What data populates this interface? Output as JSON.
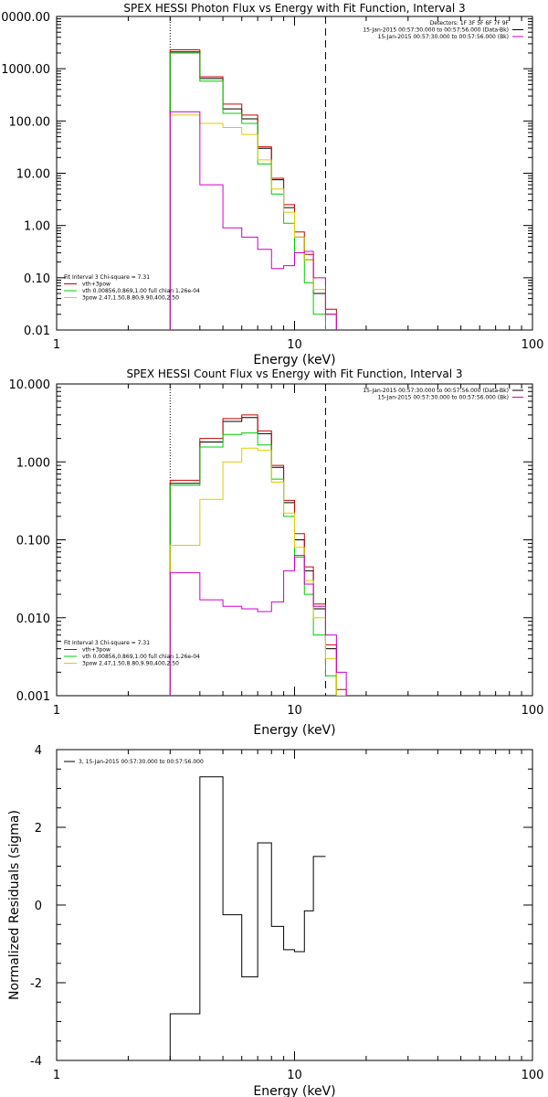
{
  "chart_data": [
    {
      "type": "line",
      "step": true,
      "title": "SPEX HESSI Photon Flux vs Energy with Fit Function, Interval 3",
      "xlabel": "Energy (keV)",
      "ylabel": "",
      "xscale": "log",
      "yscale": "log",
      "xlim": [
        1,
        100
      ],
      "ylim": [
        0.01,
        10000
      ],
      "x_ticks": [
        "1",
        "10",
        "100"
      ],
      "y_ticks": [
        "0.01",
        "0.10",
        "1.00",
        "10.00",
        "100.00",
        "1000.00",
        "0000.00"
      ],
      "vlines": [
        {
          "x": 3,
          "style": "dotted"
        },
        {
          "x": 13.5,
          "style": "dashed"
        }
      ],
      "legend_right": {
        "position": "top-right",
        "header": "Detectors: 1F 3F 5F 6F 7F 9F",
        "entries": [
          {
            "label": "15-Jan-2015 00:57:30.000 to 00:57:56.000 (Data-Bk)",
            "color": "#000000"
          },
          {
            "label": "15-Jan-2015 00:57:30.000 to 00:57:56.000 (Bk)",
            "color": "#cc00cc"
          }
        ]
      },
      "legend_left": {
        "position": "bottom-left",
        "header": "Fit Interval 3   Chi-square = 7.31",
        "entries": [
          {
            "label": "vth+3pow",
            "color": "#cc0000"
          },
          {
            "label": "vth 0.00856,0.869,1.00   full chian 1.26e-04",
            "color": "#00cc00"
          },
          {
            "label": "3pow 2.47,1.50,8.80,9.90,400,2.50",
            "color": "#ddcc00"
          }
        ]
      },
      "edges": [
        3,
        4,
        5,
        6,
        7,
        8,
        9,
        10,
        11,
        12,
        13.5,
        15
      ],
      "series": [
        {
          "role": "data",
          "color": "#000000",
          "values": [
            2100,
            650,
            170,
            110,
            30,
            7.5,
            2.2,
            0.6,
            0.22,
            0.05,
            0.02
          ]
        },
        {
          "role": "fit-total",
          "color": "#cc0000",
          "values": [
            2300,
            700,
            210,
            130,
            32,
            8,
            2.5,
            0.75,
            0.28,
            0.06,
            0.025
          ]
        },
        {
          "role": "thermal",
          "color": "#00cc00",
          "values": [
            2000,
            580,
            140,
            90,
            15,
            4,
            1.1,
            0.3,
            0.08,
            0.02,
            0.008
          ]
        },
        {
          "role": "power-law",
          "color": "#ddcc00",
          "values": [
            130,
            90,
            75,
            55,
            18,
            5,
            1.8,
            0.6,
            0.22,
            0.06,
            0.02
          ]
        },
        {
          "role": "background",
          "color": "#cc00cc",
          "values": [
            150,
            6,
            0.9,
            0.6,
            0.35,
            0.15,
            0.17,
            0.3,
            0.32,
            0.1,
            0.02
          ]
        }
      ]
    },
    {
      "type": "line",
      "step": true,
      "title": "SPEX HESSI Count Flux vs Energy with Fit Function, Interval 3",
      "xlabel": "Energy (keV)",
      "ylabel": "",
      "xscale": "log",
      "yscale": "log",
      "xlim": [
        1,
        100
      ],
      "ylim": [
        0.001,
        10
      ],
      "x_ticks": [
        "1",
        "10",
        "100"
      ],
      "y_ticks": [
        "0.001",
        "0.010",
        "0.100",
        "1.000",
        "10.000"
      ],
      "vlines": [
        {
          "x": 3,
          "style": "dotted"
        },
        {
          "x": 13.5,
          "style": "dashed"
        }
      ],
      "legend_right": {
        "position": "top-right",
        "header": "",
        "entries": [
          {
            "label": "15-Jan-2015 00:57:30.000 to 00:57:56.000 (Data-Bk)",
            "color": "#000000"
          },
          {
            "label": "15-Jan-2015 00:57:30.000 to 00:57:56.000 (Bk)",
            "color": "#cc00cc"
          }
        ]
      },
      "legend_left": {
        "position": "bottom-left",
        "header": "Fit Interval 3   Chi-square = 7.31",
        "entries": [
          {
            "label": "vth+3pow",
            "color": "#cc0000"
          },
          {
            "label": "vth 0.00856,0.869,1.00   full chian 1.26e-04",
            "color": "#00cc00"
          },
          {
            "label": "3pow 2.47,1.50,8.80,9.90,400,2.50",
            "color": "#ddcc00"
          }
        ]
      },
      "edges": [
        3,
        4,
        5,
        6,
        7,
        8,
        9,
        10,
        11,
        12,
        13.5,
        15,
        16.5
      ],
      "series": [
        {
          "role": "data",
          "color": "#000000",
          "values": [
            0.53,
            1.8,
            3.3,
            3.7,
            2.3,
            0.85,
            0.3,
            0.1,
            0.04,
            0.013,
            0.004,
            0.001
          ]
        },
        {
          "role": "fit-total",
          "color": "#cc0000",
          "values": [
            0.58,
            2.0,
            3.6,
            4.0,
            2.5,
            0.9,
            0.32,
            0.12,
            0.045,
            0.015,
            0.0045,
            0.0012
          ]
        },
        {
          "role": "thermal",
          "color": "#00cc00",
          "values": [
            0.5,
            1.55,
            2.25,
            2.35,
            1.65,
            0.6,
            0.2,
            0.06,
            0.02,
            0.006,
            0.0018,
            0.0005
          ]
        },
        {
          "role": "power-law",
          "color": "#ddcc00",
          "values": [
            0.085,
            0.33,
            1.0,
            1.5,
            1.4,
            0.55,
            0.22,
            0.08,
            0.03,
            0.01,
            0.003,
            0.001
          ]
        },
        {
          "role": "background",
          "color": "#cc00cc",
          "values": [
            0.038,
            0.017,
            0.014,
            0.013,
            0.012,
            0.016,
            0.04,
            0.063,
            0.027,
            0.014,
            0.006,
            0.002
          ]
        }
      ]
    },
    {
      "type": "line",
      "step": true,
      "title": "",
      "xlabel": "Energy (keV)",
      "ylabel": "Normalized Residuals (sigma)",
      "xscale": "log",
      "yscale": "linear",
      "xlim": [
        1,
        100
      ],
      "ylim": [
        -4,
        4
      ],
      "x_ticks": [
        "1",
        "10",
        "100"
      ],
      "y_ticks": [
        "-4",
        "-2",
        "0",
        "2",
        "4"
      ],
      "legend": {
        "position": "top-left",
        "entries": [
          {
            "label": "3, 15-Jan-2015 00:57:30.000 to 00:57:56.000",
            "color": "#000000"
          }
        ]
      },
      "edges": [
        3,
        4,
        5,
        6,
        7,
        8,
        9,
        10,
        11,
        12,
        13.5
      ],
      "series": [
        {
          "color": "#000000",
          "values": [
            -2.8,
            3.3,
            -0.25,
            -1.85,
            1.6,
            -0.55,
            -1.15,
            -1.2,
            -0.15,
            1.25
          ]
        }
      ]
    }
  ]
}
